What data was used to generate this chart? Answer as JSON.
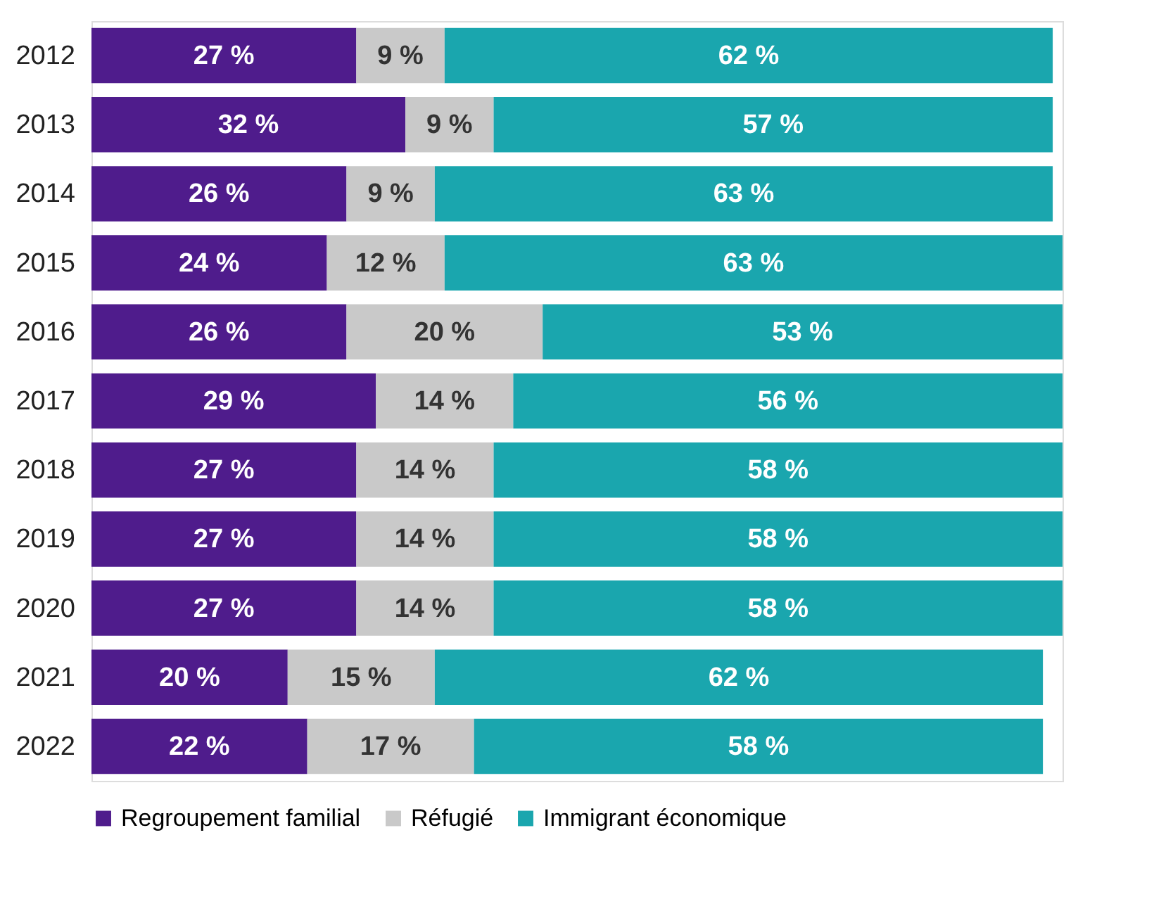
{
  "chart_data": {
    "type": "bar",
    "orientation": "horizontal",
    "stacked": true,
    "legend": "bottom",
    "categories": [
      "2012",
      "2013",
      "2014",
      "2015",
      "2016",
      "2017",
      "2018",
      "2019",
      "2020",
      "2021",
      "2022"
    ],
    "series": [
      {
        "name": "Regroupement familial",
        "color": "#4f1c8c",
        "values": [
          27,
          32,
          26,
          24,
          26,
          29,
          27,
          27,
          27,
          20,
          22
        ],
        "value_labels": [
          "27 %",
          "32 %",
          "26 %",
          "24 %",
          "26 %",
          "29 %",
          "27 %",
          "27 %",
          "27 %",
          "20 %",
          "22 %"
        ]
      },
      {
        "name": "Réfugié",
        "color": "#c9c9c9",
        "values": [
          9,
          9,
          9,
          12,
          20,
          14,
          14,
          14,
          14,
          15,
          17
        ],
        "value_labels": [
          "9 %",
          "9 %",
          "9 %",
          "12 %",
          "20 %",
          "14 %",
          "14 %",
          "14 %",
          "14 %",
          "15 %",
          "17 %"
        ]
      },
      {
        "name": "Immigrant économique",
        "color": "#1aa6ae",
        "values": [
          62,
          57,
          63,
          63,
          53,
          56,
          58,
          58,
          58,
          62,
          58
        ],
        "value_labels": [
          "62 %",
          "57 %",
          "63 %",
          "63 %",
          "53 %",
          "56 %",
          "58 %",
          "58 %",
          "58 %",
          "62 %",
          "58 %"
        ]
      }
    ]
  }
}
